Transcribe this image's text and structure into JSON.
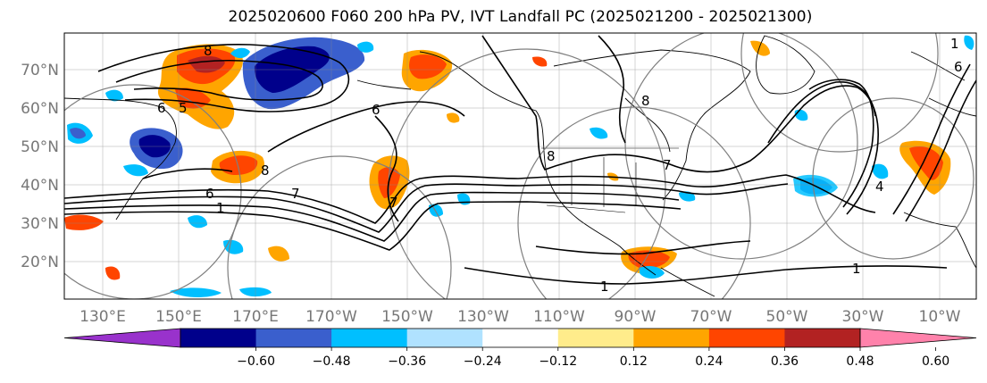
{
  "title": "2025020600 F060 200 hPa PV, IVT Landfall PC (2025021200 - 2025021300)",
  "lat_labels": [
    "70°N",
    "60°N",
    "50°N",
    "40°N",
    "30°N",
    "20°N"
  ],
  "lon_labels": [
    "130°E",
    "150°E",
    "170°E",
    "170°W",
    "150°W",
    "130°W",
    "110°W",
    "90°W",
    "70°W",
    "50°W",
    "30°W",
    "10°W"
  ],
  "contour_labels": [
    "8",
    "6",
    "5",
    "8",
    "6",
    "7",
    "1",
    "6",
    "8",
    "8",
    "7",
    "6",
    "1",
    "7",
    "1",
    "1",
    "4"
  ],
  "colorbar": {
    "ticks": [
      "−0.60",
      "−0.48",
      "−0.36",
      "−0.24",
      "−0.12",
      "0.12",
      "0.24",
      "0.36",
      "0.48",
      "0.60"
    ],
    "colors": [
      "#9932cc",
      "#00008b",
      "#3a5fcd",
      "#00bfff",
      "#b0e2ff",
      "#ffffff",
      "#ffec8b",
      "#ffa500",
      "#ff4500",
      "#b22222",
      "#ff82ab"
    ]
  },
  "colors": {
    "contour": "#000000",
    "coast": "#000000",
    "grid": "#888888",
    "circles": "#7f7f7f"
  }
}
